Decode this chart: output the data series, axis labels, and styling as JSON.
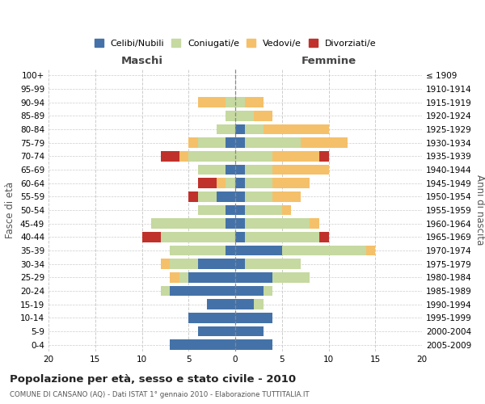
{
  "age_groups": [
    "0-4",
    "5-9",
    "10-14",
    "15-19",
    "20-24",
    "25-29",
    "30-34",
    "35-39",
    "40-44",
    "45-49",
    "50-54",
    "55-59",
    "60-64",
    "65-69",
    "70-74",
    "75-79",
    "80-84",
    "85-89",
    "90-94",
    "95-99",
    "100+"
  ],
  "birth_years": [
    "2005-2009",
    "2000-2004",
    "1995-1999",
    "1990-1994",
    "1985-1989",
    "1980-1984",
    "1975-1979",
    "1970-1974",
    "1965-1969",
    "1960-1964",
    "1955-1959",
    "1950-1954",
    "1945-1949",
    "1940-1944",
    "1935-1939",
    "1930-1934",
    "1925-1929",
    "1920-1924",
    "1915-1919",
    "1910-1914",
    "≤ 1909"
  ],
  "maschi": {
    "celibi": [
      7,
      4,
      5,
      3,
      7,
      5,
      4,
      1,
      0,
      1,
      1,
      2,
      0,
      1,
      0,
      1,
      0,
      0,
      0,
      0,
      0
    ],
    "coniugati": [
      0,
      0,
      0,
      0,
      1,
      1,
      3,
      6,
      8,
      8,
      3,
      2,
      1,
      3,
      5,
      3,
      2,
      1,
      1,
      0,
      0
    ],
    "vedovi": [
      0,
      0,
      0,
      0,
      0,
      1,
      1,
      0,
      0,
      0,
      0,
      0,
      1,
      0,
      1,
      1,
      0,
      0,
      3,
      0,
      0
    ],
    "divorziati": [
      0,
      0,
      0,
      0,
      0,
      0,
      0,
      0,
      2,
      0,
      0,
      1,
      2,
      0,
      2,
      0,
      0,
      0,
      0,
      0,
      0
    ]
  },
  "femmine": {
    "nubili": [
      4,
      3,
      4,
      2,
      3,
      4,
      1,
      5,
      1,
      1,
      1,
      1,
      1,
      1,
      0,
      1,
      1,
      0,
      0,
      0,
      0
    ],
    "coniugate": [
      0,
      0,
      0,
      1,
      1,
      4,
      6,
      9,
      8,
      7,
      4,
      3,
      3,
      3,
      4,
      6,
      2,
      2,
      1,
      0,
      0
    ],
    "vedove": [
      0,
      0,
      0,
      0,
      0,
      0,
      0,
      1,
      0,
      1,
      1,
      3,
      4,
      6,
      5,
      5,
      7,
      2,
      2,
      0,
      0
    ],
    "divorziate": [
      0,
      0,
      0,
      0,
      0,
      0,
      0,
      0,
      1,
      0,
      0,
      0,
      0,
      0,
      1,
      0,
      0,
      0,
      0,
      0,
      0
    ]
  },
  "colors": {
    "celibi_nubili": "#4472a8",
    "coniugati": "#c5d9a0",
    "vedovi": "#f5c06a",
    "divorziati": "#c0312b"
  },
  "xlim": 20,
  "title": "Popolazione per età, sesso e stato civile - 2010",
  "subtitle": "COMUNE DI CANSANO (AQ) - Dati ISTAT 1° gennaio 2010 - Elaborazione TUTTITALIA.IT",
  "ylabel_left": "Fasce di età",
  "ylabel_right": "Anni di nascita",
  "xlabel_left": "Maschi",
  "xlabel_right": "Femmine"
}
